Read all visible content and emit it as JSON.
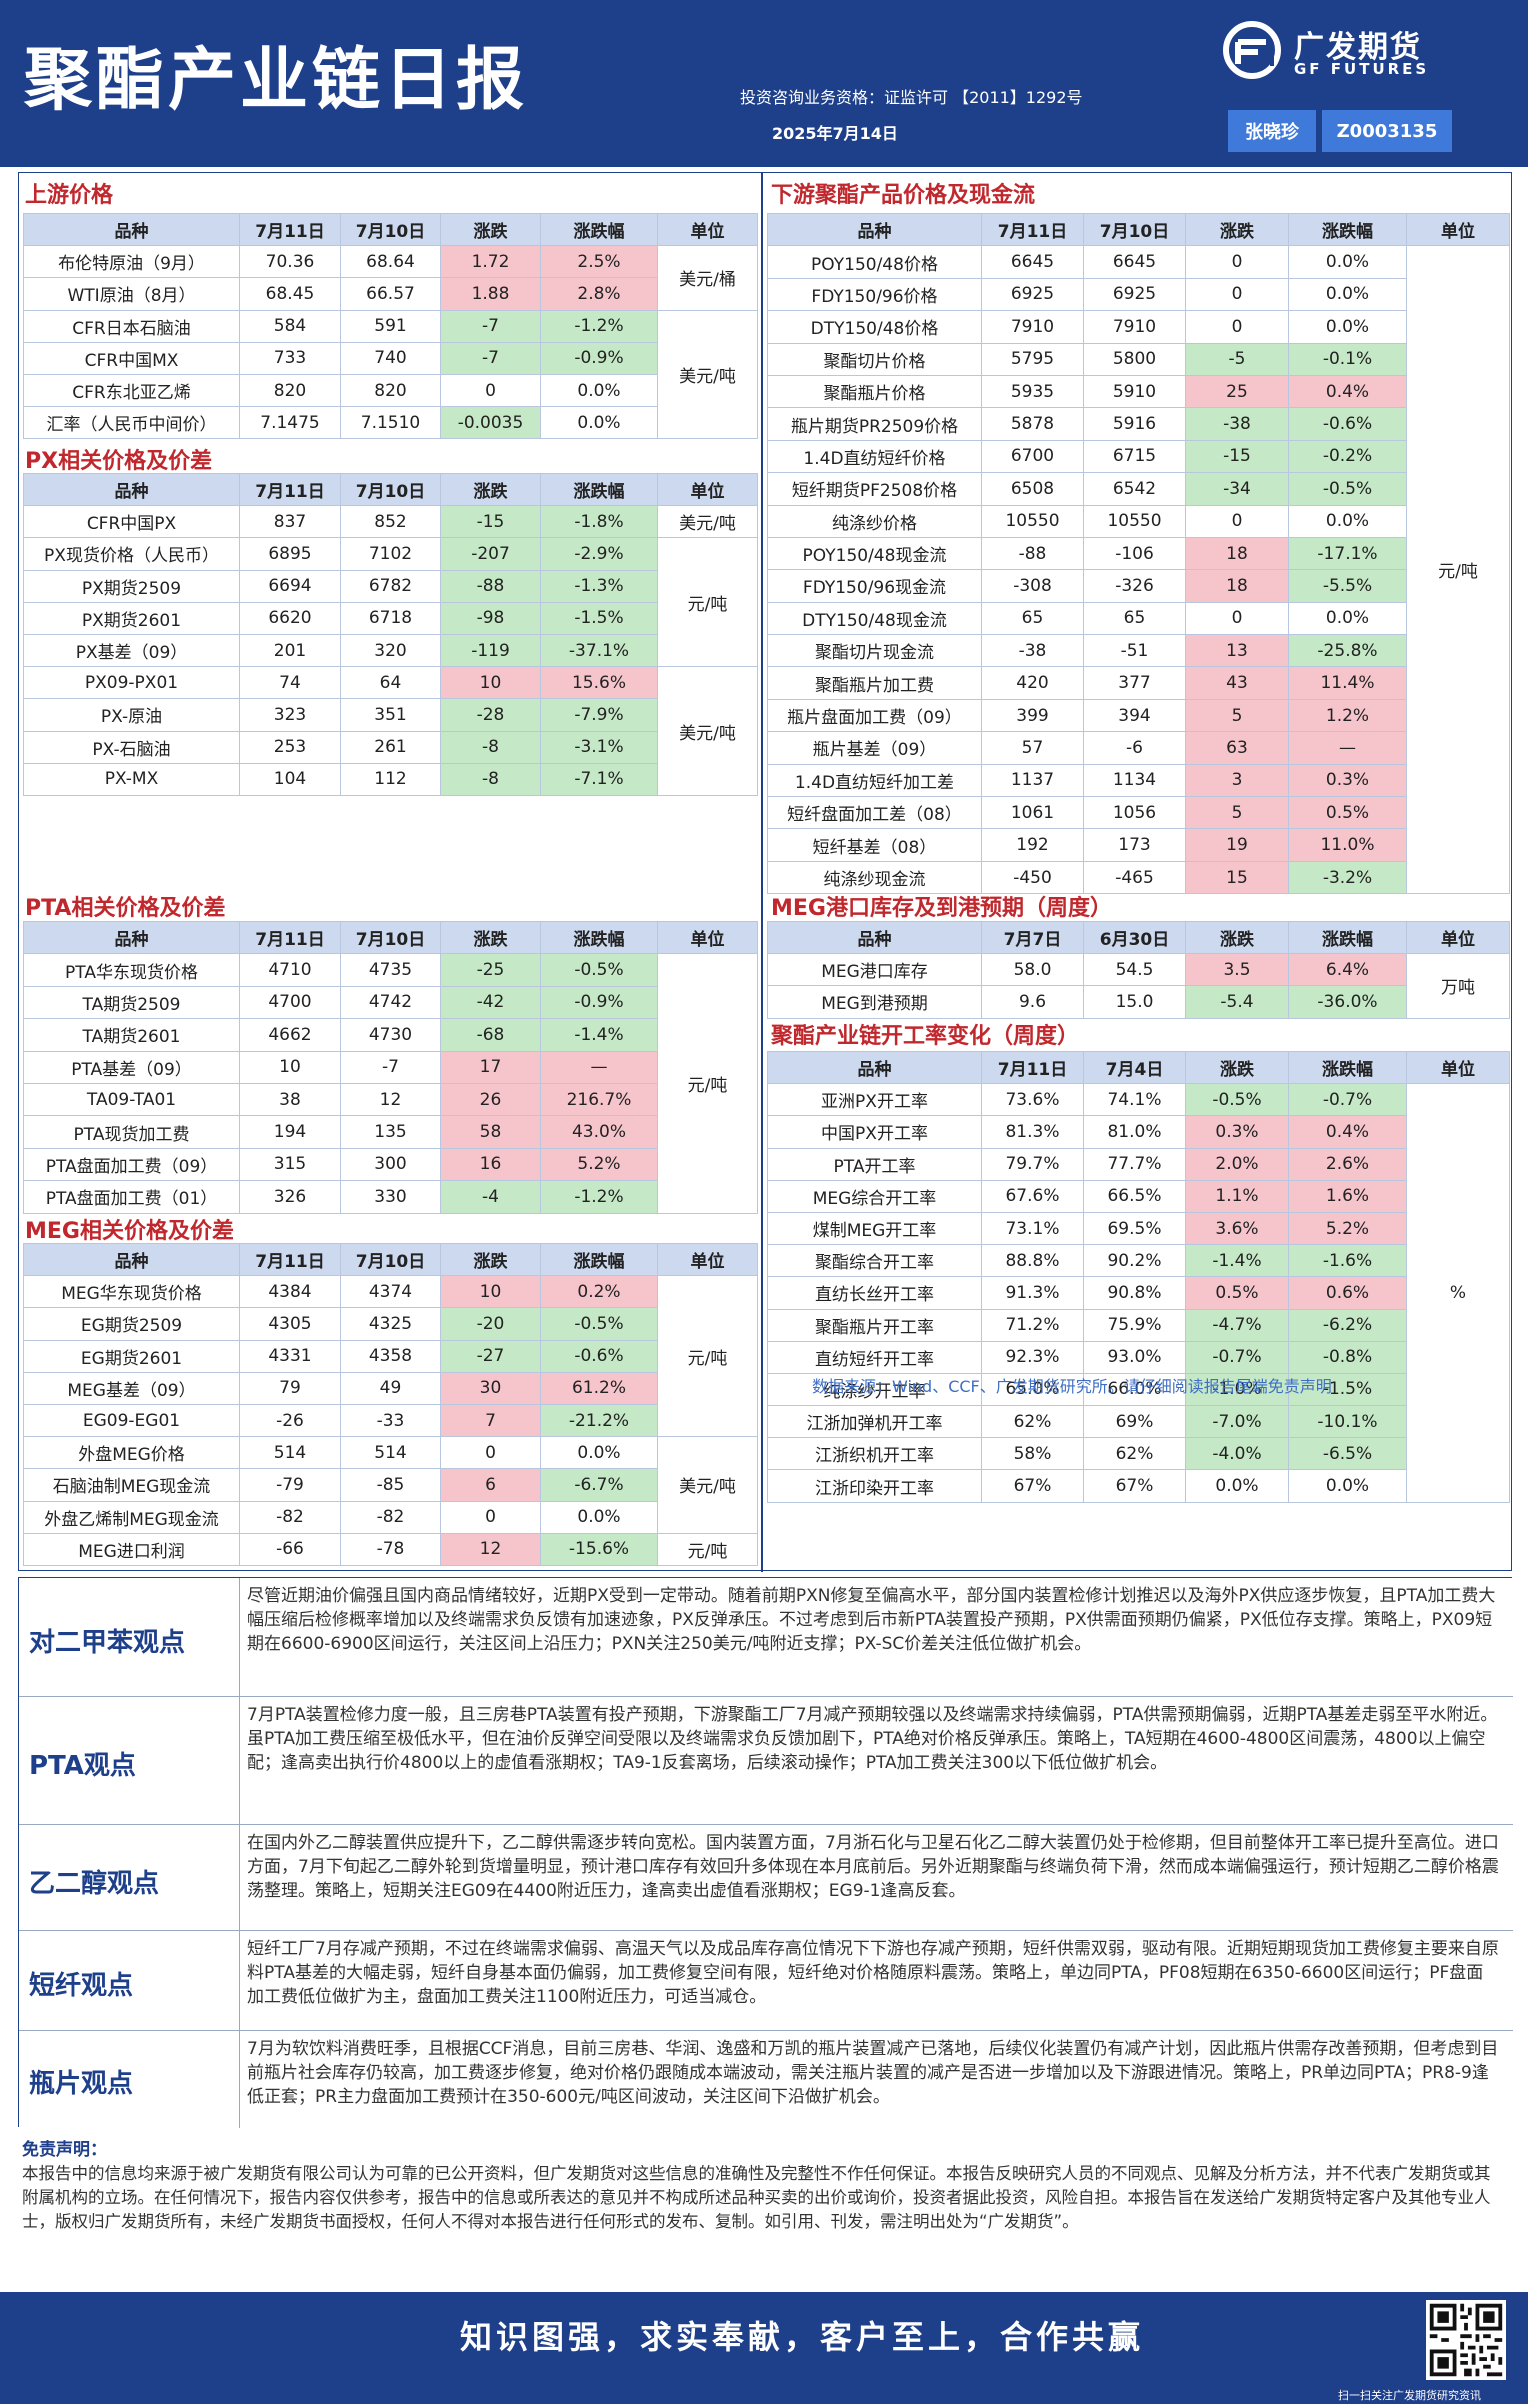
{
  "header": {
    "title": "聚酯产业链日报",
    "brand_cn": "广发期货",
    "brand_en": "GF FUTURES",
    "license": "投资咨询业务资格：证监许可 【2011】1292号",
    "date": "2025年7月14日",
    "analyst": "张晓珍",
    "analyst_id": "Z0003135"
  },
  "upstream": {
    "title": "上游价格",
    "headers": [
      "品种",
      "7月11日",
      "7月10日",
      "涨跌",
      "涨跌幅",
      "单位"
    ],
    "rows": [
      [
        "布伦特原油（9月）",
        "70.36",
        "68.64",
        "1.72",
        "2.5%"
      ],
      [
        "WTI原油（8月）",
        "68.45",
        "66.57",
        "1.88",
        "2.8%"
      ],
      [
        "CFR日本石脑油",
        "584",
        "591",
        "-7",
        "-1.2%"
      ],
      [
        "CFR中国MX",
        "733",
        "740",
        "-7",
        "-0.9%"
      ],
      [
        "CFR东北亚乙烯",
        "820",
        "820",
        "0",
        "0.0%"
      ],
      [
        "汇率（人民币中间价）",
        "7.1475",
        "7.1510",
        "-0.0035",
        "0.0%"
      ]
    ],
    "units": [
      "美元/桶",
      "美元/吨"
    ]
  },
  "px": {
    "title": "PX相关价格及价差",
    "headers": [
      "品种",
      "7月11日",
      "7月10日",
      "涨跌",
      "涨跌幅",
      "单位"
    ],
    "rows": [
      [
        "CFR中国PX",
        "837",
        "852",
        "-15",
        "-1.8%"
      ],
      [
        "PX现货价格（人民币）",
        "6895",
        "7102",
        "-207",
        "-2.9%"
      ],
      [
        "PX期货2509",
        "6694",
        "6782",
        "-88",
        "-1.3%"
      ],
      [
        "PX期货2601",
        "6620",
        "6718",
        "-98",
        "-1.5%"
      ],
      [
        "PX基差（09）",
        "201",
        "320",
        "-119",
        "-37.1%"
      ],
      [
        "PX09-PX01",
        "74",
        "64",
        "10",
        "15.6%"
      ],
      [
        "PX-原油",
        "323",
        "351",
        "-28",
        "-7.9%"
      ],
      [
        "PX-石脑油",
        "253",
        "261",
        "-8",
        "-3.1%"
      ],
      [
        "PX-MX",
        "104",
        "112",
        "-8",
        "-7.1%"
      ]
    ],
    "units": [
      "美元/吨",
      "元/吨",
      "美元/吨"
    ]
  },
  "pta": {
    "title": "PTA相关价格及价差",
    "headers": [
      "品种",
      "7月11日",
      "7月10日",
      "涨跌",
      "涨跌幅",
      "单位"
    ],
    "rows": [
      [
        "PTA华东现货价格",
        "4710",
        "4735",
        "-25",
        "-0.5%"
      ],
      [
        "TA期货2509",
        "4700",
        "4742",
        "-42",
        "-0.9%"
      ],
      [
        "TA期货2601",
        "4662",
        "4730",
        "-68",
        "-1.4%"
      ],
      [
        "PTA基差（09）",
        "10",
        "-7",
        "17",
        "—"
      ],
      [
        "TA09-TA01",
        "38",
        "12",
        "26",
        "216.7%"
      ],
      [
        "PTA现货加工费",
        "194",
        "135",
        "58",
        "43.0%"
      ],
      [
        "PTA盘面加工费（09）",
        "315",
        "300",
        "16",
        "5.2%"
      ],
      [
        "PTA盘面加工费（01）",
        "326",
        "330",
        "-4",
        "-1.2%"
      ]
    ],
    "units": [
      "元/吨"
    ]
  },
  "meg": {
    "title": "MEG相关价格及价差",
    "headers": [
      "品种",
      "7月11日",
      "7月10日",
      "涨跌",
      "涨跌幅",
      "单位"
    ],
    "rows": [
      [
        "MEG华东现货价格",
        "4384",
        "4374",
        "10",
        "0.2%"
      ],
      [
        "EG期货2509",
        "4305",
        "4325",
        "-20",
        "-0.5%"
      ],
      [
        "EG期货2601",
        "4331",
        "4358",
        "-27",
        "-0.6%"
      ],
      [
        "MEG基差（09）",
        "79",
        "49",
        "30",
        "61.2%"
      ],
      [
        "EG09-EG01",
        "-26",
        "-33",
        "7",
        "-21.2%"
      ],
      [
        "外盘MEG价格",
        "514",
        "514",
        "0",
        "0.0%"
      ],
      [
        "石脑油制MEG现金流",
        "-79",
        "-85",
        "6",
        "-6.7%"
      ],
      [
        "外盘乙烯制MEG现金流",
        "-82",
        "-82",
        "0",
        "0.0%"
      ],
      [
        "MEG进口利润",
        "-66",
        "-78",
        "12",
        "-15.6%"
      ]
    ],
    "units": [
      "元/吨",
      "美元/吨",
      "元/吨"
    ]
  },
  "downstream": {
    "title": "下游聚酯产品价格及现金流",
    "headers": [
      "品种",
      "7月11日",
      "7月10日",
      "涨跌",
      "涨跌幅",
      "单位"
    ],
    "rows": [
      [
        "POY150/48价格",
        "6645",
        "6645",
        "0",
        "0.0%"
      ],
      [
        "FDY150/96价格",
        "6925",
        "6925",
        "0",
        "0.0%"
      ],
      [
        "DTY150/48价格",
        "7910",
        "7910",
        "0",
        "0.0%"
      ],
      [
        "聚酯切片价格",
        "5795",
        "5800",
        "-5",
        "-0.1%"
      ],
      [
        "聚酯瓶片价格",
        "5935",
        "5910",
        "25",
        "0.4%"
      ],
      [
        "瓶片期货PR2509价格",
        "5878",
        "5916",
        "-38",
        "-0.6%"
      ],
      [
        "1.4D直纺短纤价格",
        "6700",
        "6715",
        "-15",
        "-0.2%"
      ],
      [
        "短纤期货PF2508价格",
        "6508",
        "6542",
        "-34",
        "-0.5%"
      ],
      [
        "纯涤纱价格",
        "10550",
        "10550",
        "0",
        "0.0%"
      ],
      [
        "POY150/48现金流",
        "-88",
        "-106",
        "18",
        "-17.1%"
      ],
      [
        "FDY150/96现金流",
        "-308",
        "-326",
        "18",
        "-5.5%"
      ],
      [
        "DTY150/48现金流",
        "65",
        "65",
        "0",
        "0.0%"
      ],
      [
        "聚酯切片现金流",
        "-38",
        "-51",
        "13",
        "-25.8%"
      ],
      [
        "聚酯瓶片加工费",
        "420",
        "377",
        "43",
        "11.4%"
      ],
      [
        "瓶片盘面加工费（09）",
        "399",
        "394",
        "5",
        "1.2%"
      ],
      [
        "瓶片基差（09）",
        "57",
        "-6",
        "63",
        "—"
      ],
      [
        "1.4D直纺短纤加工差",
        "1137",
        "1134",
        "3",
        "0.3%"
      ],
      [
        "短纤盘面加工差（08）",
        "1061",
        "1056",
        "5",
        "0.5%"
      ],
      [
        "短纤基差（08）",
        "192",
        "173",
        "19",
        "11.0%"
      ],
      [
        "纯涤纱现金流",
        "-450",
        "-465",
        "15",
        "-3.2%"
      ]
    ],
    "units": [
      "元/吨"
    ]
  },
  "meg_port": {
    "title": "MEG港口库存及到港预期（周度）",
    "headers": [
      "品种",
      "7月7日",
      "6月30日",
      "涨跌",
      "涨跌幅",
      "单位"
    ],
    "rows": [
      [
        "MEG港口库存",
        "58.0",
        "54.5",
        "3.5",
        "6.4%"
      ],
      [
        "MEG到港预期",
        "9.6",
        "15.0",
        "-5.4",
        "-36.0%"
      ]
    ],
    "units": [
      "万吨"
    ]
  },
  "operating": {
    "title": "聚酯产业链开工率变化（周度）",
    "headers": [
      "品种",
      "7月11日",
      "7月4日",
      "涨跌",
      "涨跌幅",
      "单位"
    ],
    "rows": [
      [
        "亚洲PX开工率",
        "73.6%",
        "74.1%",
        "-0.5%",
        "-0.7%"
      ],
      [
        "中国PX开工率",
        "81.3%",
        "81.0%",
        "0.3%",
        "0.4%"
      ],
      [
        "PTA开工率",
        "79.7%",
        "77.7%",
        "2.0%",
        "2.6%"
      ],
      [
        "MEG综合开工率",
        "67.6%",
        "66.5%",
        "1.1%",
        "1.6%"
      ],
      [
        "煤制MEG开工率",
        "73.1%",
        "69.5%",
        "3.6%",
        "5.2%"
      ],
      [
        "聚酯综合开工率",
        "88.8%",
        "90.2%",
        "-1.4%",
        "-1.6%"
      ],
      [
        "直纺长丝开工率",
        "91.3%",
        "90.8%",
        "0.5%",
        "0.6%"
      ],
      [
        "聚酯瓶片开工率",
        "71.2%",
        "75.9%",
        "-4.7%",
        "-6.2%"
      ],
      [
        "直纺短纤开工率",
        "92.3%",
        "93.0%",
        "-0.7%",
        "-0.8%"
      ],
      [
        "纯涤纱开工率",
        "65.0%",
        "66.0%",
        "-1.0%",
        "-1.5%"
      ],
      [
        "江浙加弹机开工率",
        "62%",
        "69%",
        "-7.0%",
        "-10.1%"
      ],
      [
        "江浙织机开工率",
        "58%",
        "62%",
        "-4.0%",
        "-6.5%"
      ],
      [
        "江浙印染开工率",
        "67%",
        "67%",
        "0.0%",
        "0.0%"
      ]
    ],
    "units": [
      "%"
    ]
  },
  "sources": "数据来源：Wind、CCF、广发期货研究所。请仔细阅读报告尾端免责声明",
  "views": [
    {
      "label": "对二甲苯观点",
      "text": "尽管近期油价偏强且国内商品情绪较好，近期PX受到一定带动。随着前期PXN修复至偏高水平，部分国内装置检修计划推迟以及海外PX供应逐步恢复，且PTA加工费大幅压缩后检修概率增加以及终端需求负反馈有加速迹象，PX反弹承压。不过考虑到后市新PTA装置投产预期，PX供需面预期仍偏紧，PX低位存支撑。策略上，PX09短期在6600-6900区间运行，关注区间上沿压力；PXN关注250美元/吨附近支撑；PX-SC价差关注低位做扩机会。"
    },
    {
      "label": "PTA观点",
      "text": "7月PTA装置检修力度一般，且三房巷PTA装置有投产预期，下游聚酯工厂7月减产预期较强以及终端需求持续偏弱，PTA供需预期偏弱，近期PTA基差走弱至平水附近。虽PTA加工费压缩至极低水平，但在油价反弹空间受限以及终端需求负反馈加剧下，PTA绝对价格反弹承压。策略上，TA短期在4600-4800区间震荡，4800以上偏空配；逢高卖出执行价4800以上的虚值看涨期权；TA9-1反套离场，后续滚动操作；PTA加工费关注300以下低位做扩机会。"
    },
    {
      "label": "乙二醇观点",
      "text": "在国内外乙二醇装置供应提升下，乙二醇供需逐步转向宽松。国内装置方面，7月浙石化与卫星石化乙二醇大装置仍处于检修期，但目前整体开工率已提升至高位。进口方面，7月下旬起乙二醇外轮到货增量明显，预计港口库存有效回升多体现在本月底前后。另外近期聚酯与终端负荷下滑，然而成本端偏强运行，预计短期乙二醇价格震荡整理。策略上，短期关注EG09在4400附近压力，逢高卖出虚值看涨期权；EG9-1逢高反套。"
    },
    {
      "label": "短纤观点",
      "text": "短纤工厂7月存减产预期，不过在终端需求偏弱、高温天气以及成品库存高位情况下下游也存减产预期，短纤供需双弱，驱动有限。近期短期现货加工费修复主要来自原料PTA基差的大幅走弱，短纤自身基本面仍偏弱，加工费修复空间有限，短纤绝对价格随原料震荡。策略上，单边同PTA，PF08短期在6350-6600区间运行；PF盘面加工费低位做扩为主，盘面加工费关注1100附近压力，可适当减仓。"
    },
    {
      "label": "瓶片观点",
      "text": "7月为软饮料消费旺季，且根据CCF消息，目前三房巷、华润、逸盛和万凯的瓶片装置减产已落地，后续仪化装置仍有减产计划，因此瓶片供需存改善预期，但考虑到目前瓶片社会库存仍较高，加工费逐步修复，绝对价格仍跟随成本端波动，需关注瓶片装置的减产是否进一步增加以及下游跟进情况。策略上，PR单边同PTA；PR8-9逢低正套；PR主力盘面加工费预计在350-600元/吨区间波动，关注区间下沿做扩机会。"
    }
  ],
  "disclaimer": {
    "title": "免责声明：",
    "text": "本报告中的信息均来源于被广发期货有限公司认为可靠的已公开资料，但广发期货对这些信息的准确性及完整性不作任何保证。本报告反映研究人员的不同观点、见解及分析方法，并不代表广发期货或其附属机构的立场。在任何情况下，报告内容仅供参考，报告中的信息或所表达的意见并不构成所述品种买卖的出价或询价，投资者据此投资，风险自担。本报告旨在发送给广发期货特定客户及其他专业人士，版权归广发期货所有，未经广发期货书面授权，任何人不得对本报告进行任何形式的发布、复制。如引用、刊发，需注明出处为“广发期货”。"
  },
  "footer": {
    "slogan": "知识图强，求实奉献，客户至上，合作共赢",
    "qr_caption": "扫一扫关注广发期货研究资讯"
  },
  "colors": {
    "navy": "#1e3f8a",
    "up": "#f6c5cc",
    "down": "#c5e8c6",
    "header_row": "#ccd9ef"
  }
}
